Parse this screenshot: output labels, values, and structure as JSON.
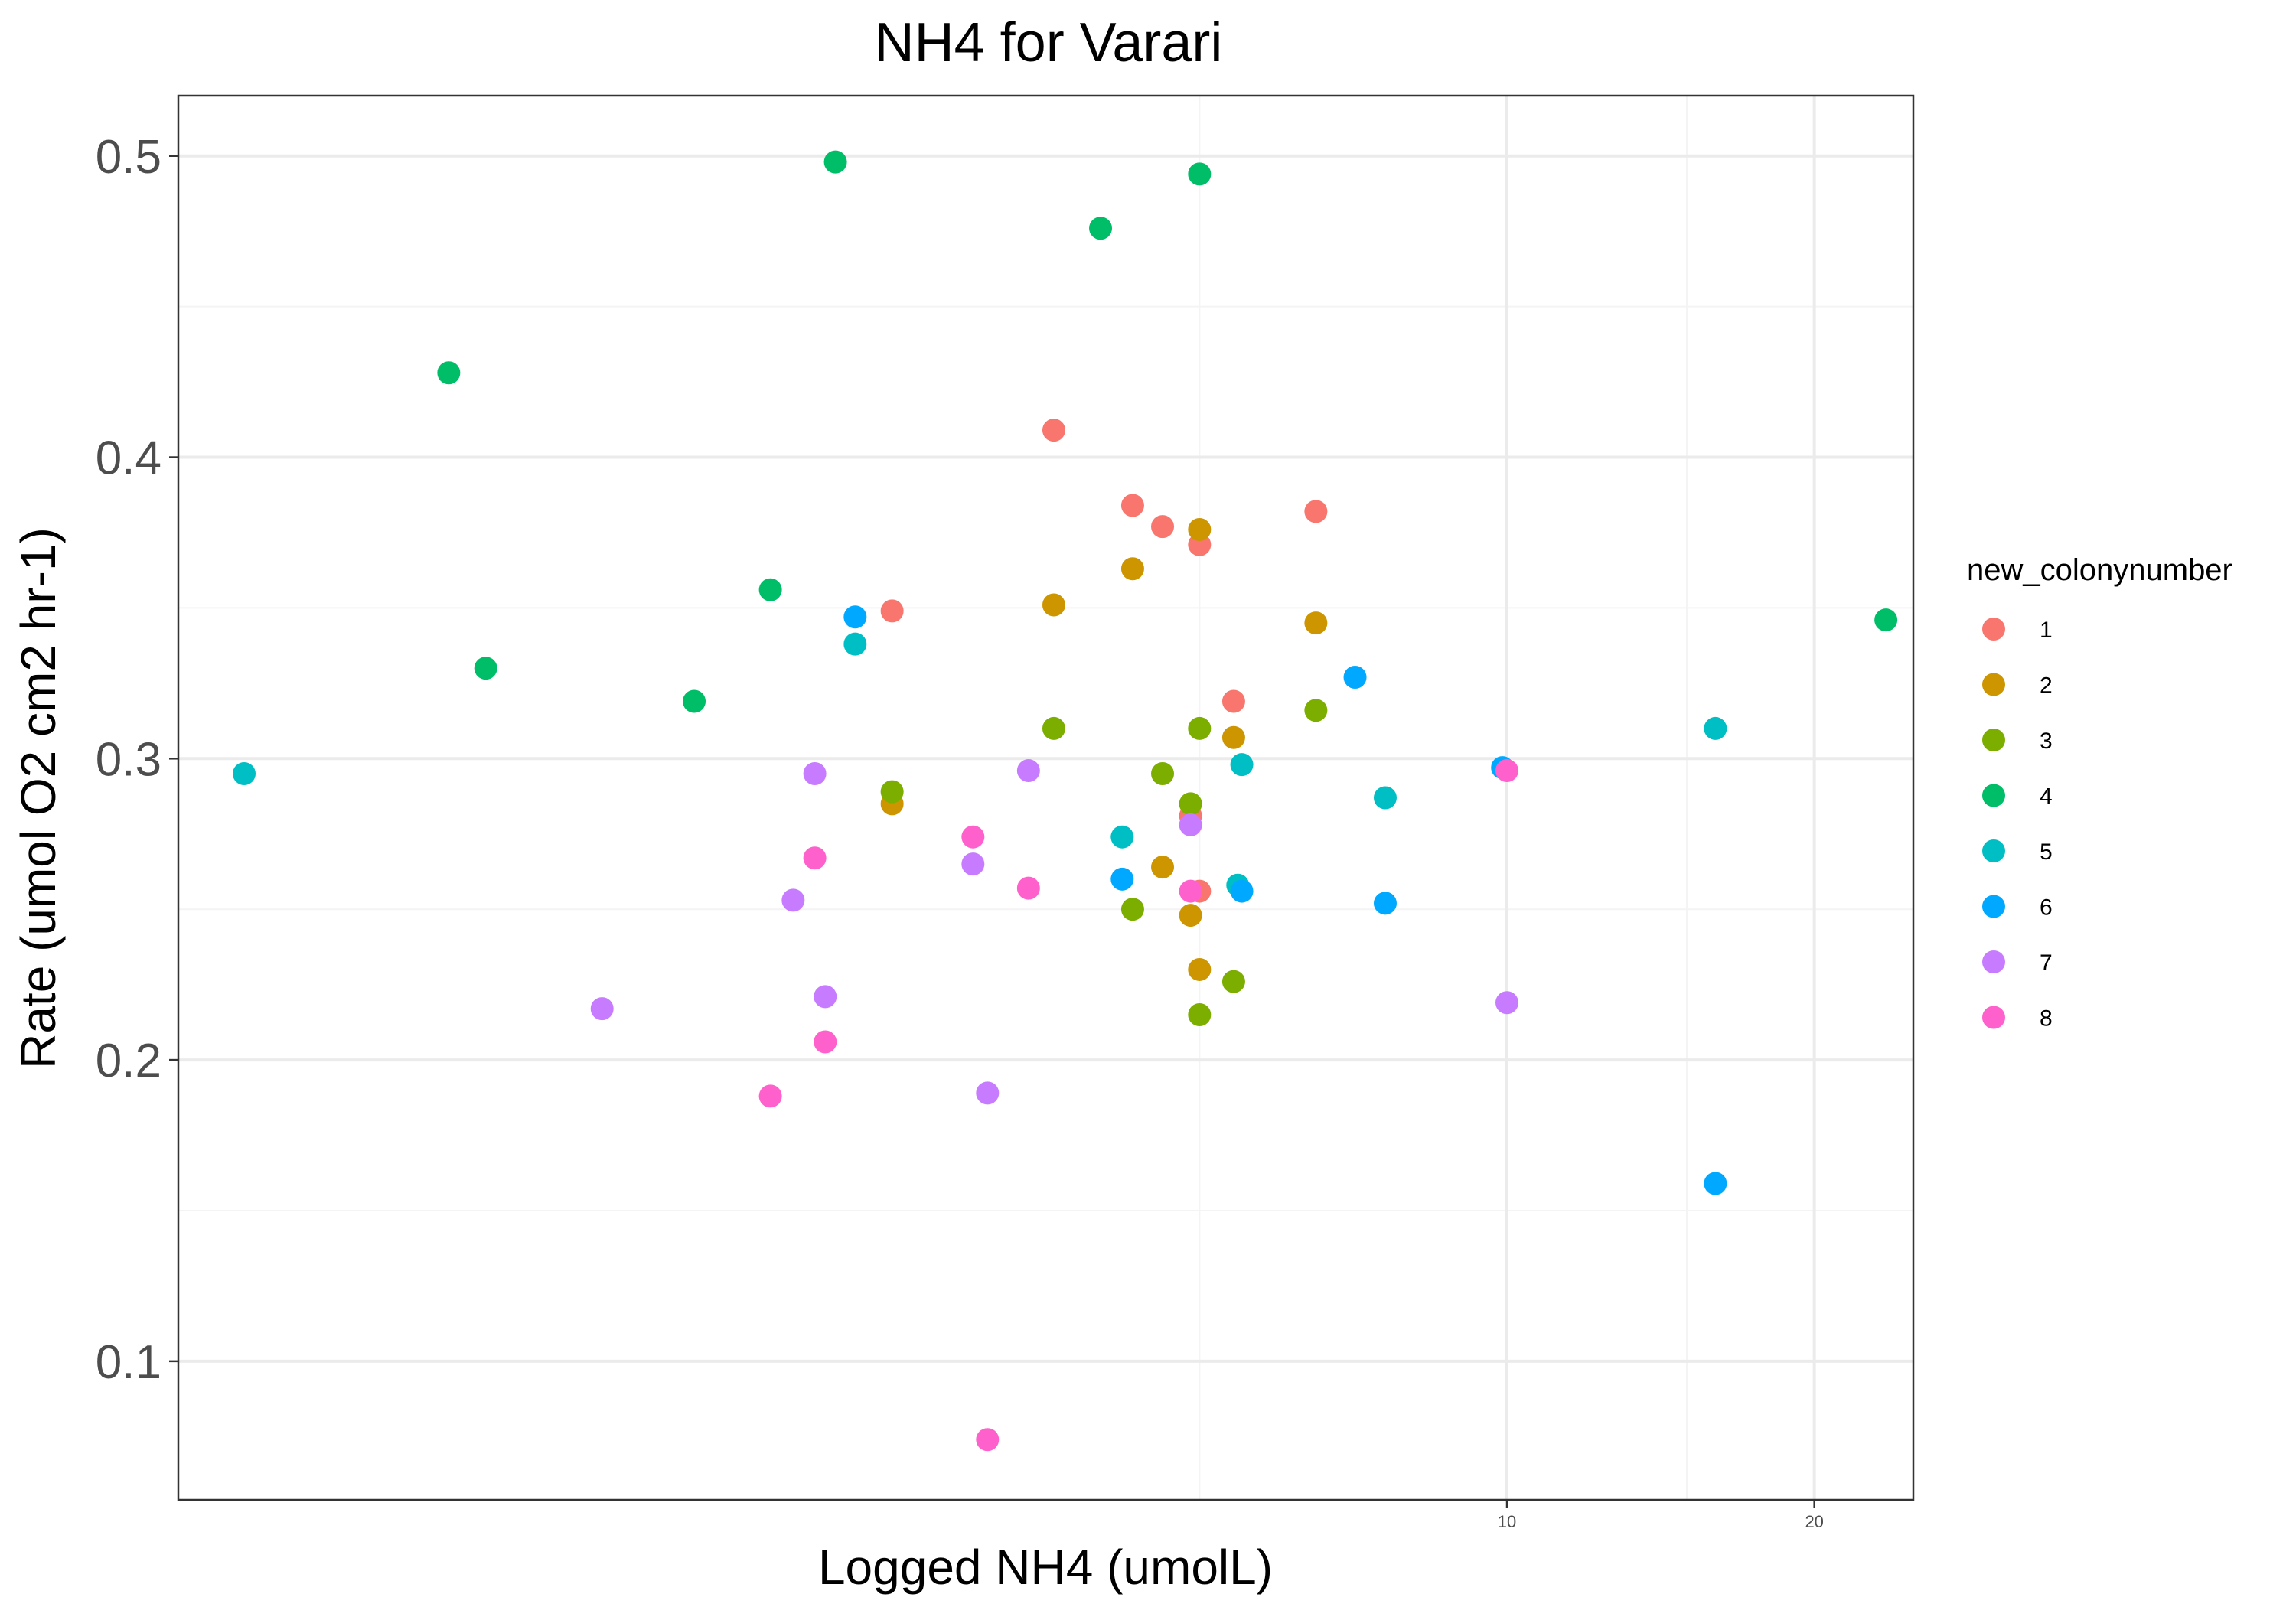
{
  "chart_data": {
    "type": "scatter",
    "title": "NH4 for Varari",
    "xlabel": "Logged NH4 (umolL)",
    "ylabel": "Rate (umol O2 cm2 hr-1)",
    "x_scale": "log10",
    "xlim": [
      0.5,
      25
    ],
    "ylim": [
      0.054,
      0.52
    ],
    "x_ticks": [
      10,
      20
    ],
    "x_tick_labels": [
      "10",
      "20"
    ],
    "x_minor_ticks": [
      5,
      15,
      25
    ],
    "y_ticks": [
      0.1,
      0.2,
      0.3,
      0.4,
      0.5
    ],
    "y_tick_labels": [
      "0.1",
      "0.2",
      "0.3",
      "0.4",
      "0.5"
    ],
    "y_minor_ticks": [
      0.15,
      0.25,
      0.35,
      0.45
    ],
    "grid": true,
    "legend": {
      "title": "new_colonynumber",
      "position": "right"
    },
    "series": [
      {
        "name": "1",
        "color": "#F8766D",
        "points": [
          [
            3.6,
            0.409
          ],
          [
            4.3,
            0.384
          ],
          [
            4.6,
            0.377
          ],
          [
            5.0,
            0.371
          ],
          [
            6.5,
            0.382
          ],
          [
            2.5,
            0.349
          ],
          [
            5.4,
            0.319
          ],
          [
            5.0,
            0.256
          ],
          [
            4.9,
            0.281
          ]
        ]
      },
      {
        "name": "2",
        "color": "#CD9600",
        "points": [
          [
            5.0,
            0.376
          ],
          [
            4.3,
            0.363
          ],
          [
            3.6,
            0.351
          ],
          [
            6.5,
            0.345
          ],
          [
            5.4,
            0.307
          ],
          [
            2.5,
            0.285
          ],
          [
            4.6,
            0.264
          ],
          [
            4.9,
            0.248
          ],
          [
            5.0,
            0.23
          ]
        ]
      },
      {
        "name": "3",
        "color": "#7CAE00",
        "points": [
          [
            3.6,
            0.31
          ],
          [
            5.0,
            0.31
          ],
          [
            6.5,
            0.316
          ],
          [
            4.6,
            0.295
          ],
          [
            4.9,
            0.285
          ],
          [
            2.5,
            0.289
          ],
          [
            4.3,
            0.25
          ],
          [
            5.4,
            0.226
          ],
          [
            5.0,
            0.215
          ]
        ]
      },
      {
        "name": "4",
        "color": "#00BE67",
        "points": [
          [
            2.2,
            0.498
          ],
          [
            5.0,
            0.494
          ],
          [
            4.0,
            0.476
          ],
          [
            0.92,
            0.428
          ],
          [
            1.0,
            0.33
          ],
          [
            1.9,
            0.356
          ],
          [
            1.6,
            0.319
          ],
          [
            23.5,
            0.346
          ]
        ]
      },
      {
        "name": "5",
        "color": "#00BFC4",
        "points": [
          [
            0.58,
            0.295
          ],
          [
            2.3,
            0.338
          ],
          [
            5.5,
            0.298
          ],
          [
            7.6,
            0.287
          ],
          [
            16.0,
            0.31
          ],
          [
            4.2,
            0.274
          ],
          [
            5.45,
            0.258
          ]
        ]
      },
      {
        "name": "6",
        "color": "#00A9FF",
        "points": [
          [
            2.3,
            0.347
          ],
          [
            7.1,
            0.327
          ],
          [
            9.9,
            0.297
          ],
          [
            4.2,
            0.26
          ],
          [
            5.5,
            0.256
          ],
          [
            7.6,
            0.252
          ],
          [
            16.0,
            0.159
          ]
        ]
      },
      {
        "name": "7",
        "color": "#C77CFF",
        "points": [
          [
            2.1,
            0.295
          ],
          [
            3.4,
            0.296
          ],
          [
            4.9,
            0.278
          ],
          [
            3.0,
            0.265
          ],
          [
            2.0,
            0.253
          ],
          [
            2.15,
            0.221
          ],
          [
            1.3,
            0.217
          ],
          [
            3.1,
            0.189
          ],
          [
            10.0,
            0.219
          ]
        ]
      },
      {
        "name": "8",
        "color": "#FF61CC",
        "points": [
          [
            2.1,
            0.267
          ],
          [
            3.0,
            0.274
          ],
          [
            3.4,
            0.257
          ],
          [
            4.9,
            0.256
          ],
          [
            10.0,
            0.296
          ],
          [
            2.15,
            0.206
          ],
          [
            1.9,
            0.188
          ],
          [
            3.1,
            0.074
          ]
        ]
      }
    ]
  }
}
